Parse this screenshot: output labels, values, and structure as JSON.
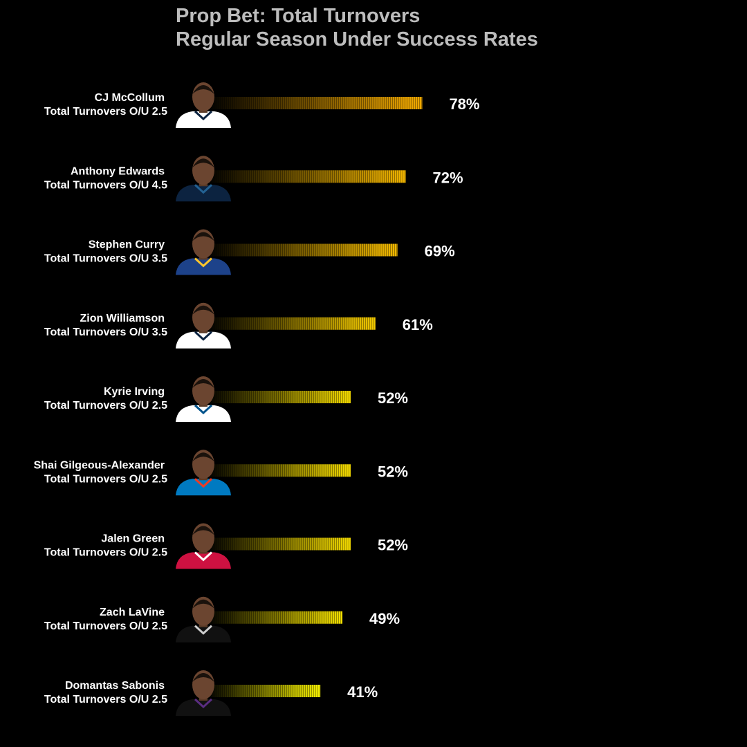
{
  "chart_data": {
    "type": "bar",
    "orientation": "horizontal",
    "title": "Prop Bet: Total Turnovers",
    "subtitle": "Regular Season Under Success Rates",
    "xlim": [
      0,
      100
    ],
    "grid": false,
    "legend": "none",
    "categories": [
      {
        "player": "CJ McCollum",
        "line": "Total Turnovers O/U 2.5",
        "team_colors": [
          "#ffffff",
          "#0c2340"
        ]
      },
      {
        "player": "Anthony Edwards",
        "line": "Total Turnovers O/U 4.5",
        "team_colors": [
          "#0c2340",
          "#236192"
        ]
      },
      {
        "player": "Stephen Curry",
        "line": "Total Turnovers O/U 3.5",
        "team_colors": [
          "#1d428a",
          "#ffc72c"
        ]
      },
      {
        "player": "Zion Williamson",
        "line": "Total Turnovers O/U 3.5",
        "team_colors": [
          "#ffffff",
          "#0c2340"
        ]
      },
      {
        "player": "Kyrie Irving",
        "line": "Total Turnovers O/U 2.5",
        "team_colors": [
          "#ffffff",
          "#00538c"
        ]
      },
      {
        "player": "Shai Gilgeous-Alexander",
        "line": "Total Turnovers O/U 2.5",
        "team_colors": [
          "#007ac1",
          "#ef3b24"
        ]
      },
      {
        "player": "Jalen Green",
        "line": "Total Turnovers O/U 2.5",
        "team_colors": [
          "#ce1141",
          "#ffffff"
        ]
      },
      {
        "player": "Zach LaVine",
        "line": "Total Turnovers O/U 2.5",
        "team_colors": [
          "#111111",
          "#cfcfcf"
        ]
      },
      {
        "player": "Domantas Sabonis",
        "line": "Total Turnovers O/U 2.5",
        "team_colors": [
          "#111111",
          "#5a2d81"
        ]
      }
    ],
    "values": [
      78,
      72,
      69,
      61,
      52,
      52,
      52,
      49,
      41
    ],
    "value_labels": [
      "78%",
      "72%",
      "69%",
      "61%",
      "52%",
      "52%",
      "52%",
      "49%",
      "41%"
    ],
    "bar_gradient": {
      "start": "#000000",
      "end_high": "#f2a900",
      "end_low": "#f5f000"
    }
  }
}
